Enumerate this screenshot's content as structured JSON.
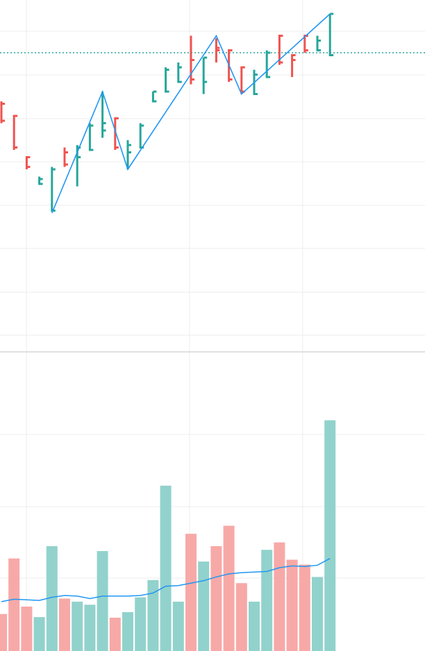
{
  "colors": {
    "up": "#26a69a",
    "down": "#ef5350",
    "up_volume": "#92d2cc",
    "down_volume": "#f7a9a7",
    "zigzag": "#2196f3",
    "volume_ma": "#2196f3",
    "price_line": "#26a69a",
    "grid": "#eeeeee",
    "pane_separator": "#e0e0e0",
    "background": "#ffffff"
  },
  "chart_data": [
    {
      "type": "ohlc",
      "pane": "price",
      "grid": true,
      "ylim": [
        0,
        14
      ],
      "current_price_line": 12.2,
      "bars": [
        {
          "t": 0,
          "o": 10.1,
          "h": 10.2,
          "l": 9.3,
          "c": 9.4
        },
        {
          "t": 1,
          "o": 9.6,
          "h": 9.6,
          "l": 8.2,
          "c": 8.3
        },
        {
          "t": 2,
          "o": 7.9,
          "h": 7.9,
          "l": 7.4,
          "c": 7.5
        },
        {
          "t": 3,
          "o": 6.8,
          "h": 7.1,
          "l": 6.8,
          "c": 7.0
        },
        {
          "t": 4,
          "o": 5.7,
          "h": 7.5,
          "l": 5.7,
          "c": 7.4
        },
        {
          "t": 5,
          "o": 8.1,
          "h": 8.3,
          "l": 7.5,
          "c": 7.6
        },
        {
          "t": 6,
          "o": 7.9,
          "h": 8.4,
          "l": 6.7,
          "c": 8.3
        },
        {
          "t": 7,
          "o": 8.2,
          "h": 9.3,
          "l": 8.2,
          "c": 9.2
        },
        {
          "t": 8,
          "o": 9.0,
          "h": 10.6,
          "l": 8.7,
          "c": 9.3
        },
        {
          "t": 9,
          "o": 9.5,
          "h": 9.5,
          "l": 8.2,
          "c": 8.3
        },
        {
          "t": 10,
          "o": 8.1,
          "h": 8.6,
          "l": 7.4,
          "c": 8.4
        },
        {
          "t": 11,
          "o": 8.3,
          "h": 9.3,
          "l": 8.3,
          "c": 9.2
        },
        {
          "t": 12,
          "o": 10.2,
          "h": 10.6,
          "l": 10.2,
          "c": 10.6
        },
        {
          "t": 13,
          "o": 10.6,
          "h": 11.6,
          "l": 10.6,
          "c": 11.5
        },
        {
          "t": 14,
          "o": 11.0,
          "h": 11.8,
          "l": 11.0,
          "c": 11.6
        },
        {
          "t": 15,
          "o": 11.9,
          "h": 12.9,
          "l": 10.9,
          "c": 11.1
        },
        {
          "t": 16,
          "o": 11.0,
          "h": 12.0,
          "l": 10.5,
          "c": 12.0
        },
        {
          "t": 17,
          "o": 12.4,
          "h": 12.8,
          "l": 11.8,
          "c": 12.3
        },
        {
          "t": 18,
          "o": 12.3,
          "h": 12.3,
          "l": 11.0,
          "c": 11.1
        },
        {
          "t": 19,
          "o": 11.6,
          "h": 11.6,
          "l": 10.5,
          "c": 10.6
        },
        {
          "t": 20,
          "o": 10.5,
          "h": 11.5,
          "l": 10.5,
          "c": 11.3
        },
        {
          "t": 21,
          "o": 11.2,
          "h": 12.3,
          "l": 11.2,
          "c": 12.2
        },
        {
          "t": 22,
          "o": 12.9,
          "h": 12.9,
          "l": 11.7,
          "c": 11.8
        },
        {
          "t": 23,
          "o": 12.1,
          "h": 12.1,
          "l": 11.2,
          "c": 11.9
        },
        {
          "t": 24,
          "o": 12.9,
          "h": 12.9,
          "l": 12.2,
          "c": 12.3
        },
        {
          "t": 25,
          "o": 12.3,
          "h": 12.9,
          "l": 12.3,
          "c": 12.7
        },
        {
          "t": 26,
          "o": 12.1,
          "h": 13.8,
          "l": 12.1,
          "c": 13.8
        }
      ],
      "zigzag": [
        {
          "t": 4,
          "v": 5.6
        },
        {
          "t": 8,
          "v": 10.6
        },
        {
          "t": 10,
          "v": 7.4
        },
        {
          "t": 17,
          "v": 12.9
        },
        {
          "t": 19,
          "v": 10.5
        },
        {
          "t": 26,
          "v": 13.8
        }
      ]
    },
    {
      "type": "bar",
      "pane": "volume",
      "grid": true,
      "ylim": [
        0,
        4.5
      ],
      "values": [
        0.6,
        1.5,
        0.72,
        0.55,
        1.7,
        0.85,
        0.8,
        0.75,
        1.62,
        0.54,
        0.63,
        0.87,
        1.15,
        2.68,
        0.8,
        1.9,
        1.45,
        1.7,
        2.03,
        1.1,
        0.8,
        1.64,
        1.76,
        1.48,
        1.4,
        1.2,
        3.74
      ],
      "directions": [
        "down",
        "down",
        "down",
        "up",
        "up",
        "down",
        "up",
        "up",
        "up",
        "down",
        "up",
        "up",
        "up",
        "up",
        "up",
        "down",
        "up",
        "down",
        "down",
        "down",
        "up",
        "up",
        "down",
        "down",
        "down",
        "up",
        "up"
      ],
      "moving_average": [
        0.8,
        0.84,
        0.83,
        0.82,
        0.87,
        0.9,
        0.89,
        0.85,
        0.89,
        0.89,
        0.89,
        0.9,
        0.94,
        1.05,
        1.06,
        1.1,
        1.14,
        1.2,
        1.25,
        1.27,
        1.28,
        1.29,
        1.35,
        1.38,
        1.37,
        1.39,
        1.5
      ]
    }
  ]
}
